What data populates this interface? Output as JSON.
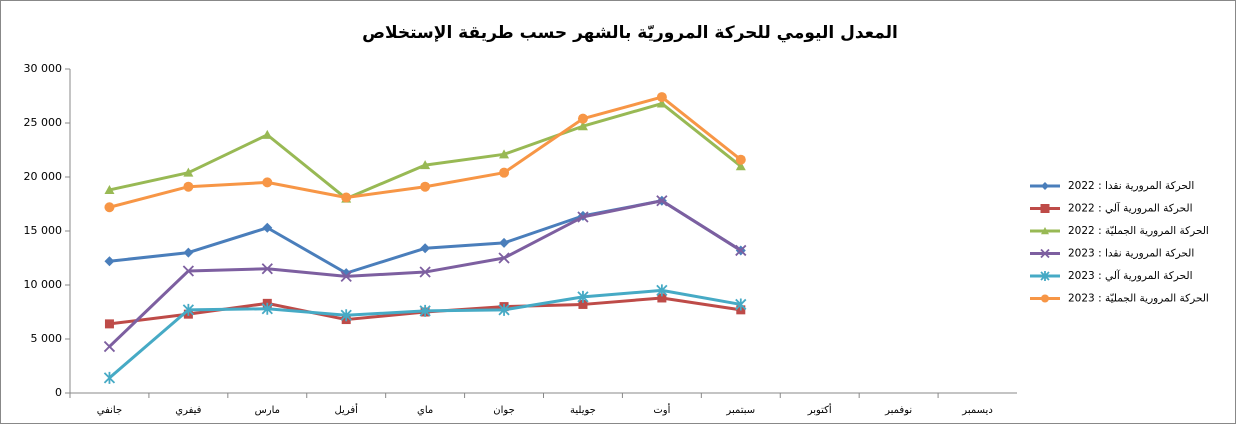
{
  "chart_data": {
    "type": "line",
    "title": "المعدل اليومي للحركة المروريّة بالشهر حسب طريقة الإستخلاص",
    "categories": [
      "جانفي",
      "فيفري",
      "مارس",
      "أفريل",
      "ماي",
      "جوان",
      "جويلية",
      "أوت",
      "سبتمبر",
      "أكتوبر",
      "نوفمبر",
      "ديسمبر"
    ],
    "ylim": [
      0,
      30000
    ],
    "yticks": [
      0,
      {
        "value": 5000,
        "label": "5 000"
      },
      {
        "value": 10000,
        "label": "10 000"
      },
      {
        "value": 15000,
        "label": "15 000"
      },
      {
        "value": 20000,
        "label": "20 000"
      },
      {
        "value": 25000,
        "label": "25 000"
      },
      {
        "value": 30000,
        "label": "30 000"
      }
    ],
    "grid": false,
    "legend": "right",
    "series": [
      {
        "name": "الحركة المرورية نقدا : 2022",
        "color": "#4a7ebb",
        "marker": "diamond",
        "values": [
          12200,
          13000,
          15300,
          11100,
          13400,
          13900,
          16400,
          17800,
          13200,
          null,
          null,
          null
        ]
      },
      {
        "name": "الحركة المرورية آلي : 2022",
        "color": "#be4b48",
        "marker": "square",
        "values": [
          6400,
          7300,
          8300,
          6800,
          7500,
          8000,
          8200,
          8800,
          7700,
          null,
          null,
          null
        ]
      },
      {
        "name": "الحركة المرورية الجمليّة : 2022",
        "color": "#98b954",
        "marker": "triangle",
        "values": [
          18800,
          20400,
          23900,
          18000,
          21100,
          22100,
          24700,
          26800,
          21000,
          null,
          null,
          null
        ]
      },
      {
        "name": "الحركة المرورية نقدا : 2023",
        "color": "#7d5fa0",
        "marker": "x",
        "values": [
          4300,
          11300,
          11500,
          10800,
          11200,
          12500,
          16300,
          17800,
          13200,
          null,
          null,
          null
        ]
      },
      {
        "name": "الحركة المرورية آلي : 2023",
        "color": "#46aac5",
        "marker": "star",
        "values": [
          1400,
          7700,
          7800,
          7200,
          7600,
          7700,
          8900,
          9500,
          8200,
          null,
          null,
          null
        ]
      },
      {
        "name": "الحركة المرورية الجمليّة : 2023",
        "color": "#f79646",
        "marker": "circle",
        "values": [
          17200,
          19100,
          19500,
          18100,
          19100,
          20400,
          25400,
          27400,
          21600,
          null,
          null,
          null
        ]
      }
    ]
  }
}
